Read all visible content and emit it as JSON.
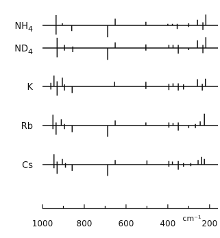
{
  "chart_data": {
    "type": "stick-spectrum",
    "xlim": [
      1000,
      160
    ],
    "x_ticks": [
      1000,
      800,
      600,
      400,
      200
    ],
    "x_tick_labels": [
      "1000",
      "800",
      "600",
      "400",
      "200"
    ],
    "x_unit": "cm⁻¹",
    "series": [
      {
        "name": "NH4",
        "label_main": "NH",
        "label_sub": "4",
        "peaks": [
          {
            "x": 935,
            "up": 1.0,
            "down": 0.9
          },
          {
            "x": 905,
            "up": 0.2,
            "down": 0.0
          },
          {
            "x": 860,
            "up": 0.0,
            "down": 0.55
          },
          {
            "x": 688,
            "up": 0.0,
            "down": 1.15
          },
          {
            "x": 652,
            "up": 0.65,
            "down": 0.0
          },
          {
            "x": 505,
            "up": 0.35,
            "down": 0.0
          },
          {
            "x": 400,
            "up": 0.15,
            "down": 0.0
          },
          {
            "x": 378,
            "up": 0.15,
            "down": 0.0
          },
          {
            "x": 355,
            "up": 0.15,
            "down": 0.35
          },
          {
            "x": 300,
            "up": 0.2,
            "down": 0.15
          },
          {
            "x": 258,
            "up": 0.55,
            "down": 0.0
          },
          {
            "x": 232,
            "up": 0.3,
            "down": 0.45
          },
          {
            "x": 218,
            "up": 1.05,
            "down": 0.0
          }
        ]
      },
      {
        "name": "ND4",
        "label_main": "ND",
        "label_sub": "4",
        "peaks": [
          {
            "x": 930,
            "up": 1.0,
            "down": 0.9
          },
          {
            "x": 895,
            "up": 0.3,
            "down": 0.25
          },
          {
            "x": 855,
            "up": 0.15,
            "down": 0.4
          },
          {
            "x": 688,
            "up": 0.0,
            "down": 1.15
          },
          {
            "x": 652,
            "up": 0.55,
            "down": 0.0
          },
          {
            "x": 505,
            "up": 0.35,
            "down": 0.25
          },
          {
            "x": 395,
            "up": 0.3,
            "down": 0.0
          },
          {
            "x": 375,
            "up": 0.3,
            "down": 0.0
          },
          {
            "x": 350,
            "up": 0.3,
            "down": 0.55
          },
          {
            "x": 300,
            "up": 0.0,
            "down": 0.2
          },
          {
            "x": 258,
            "up": 0.75,
            "down": 0.0
          },
          {
            "x": 232,
            "up": 0.3,
            "down": 0.5
          },
          {
            "x": 218,
            "up": 1.05,
            "down": 0.0
          }
        ]
      },
      {
        "name": "K",
        "label_main": "K",
        "label_sub": "",
        "peaks": [
          {
            "x": 960,
            "up": 0.35,
            "down": 0.3
          },
          {
            "x": 945,
            "up": 1.05,
            "down": 0.0
          },
          {
            "x": 930,
            "up": 0.5,
            "down": 0.9
          },
          {
            "x": 905,
            "up": 0.85,
            "down": 0.0
          },
          {
            "x": 895,
            "up": 0.2,
            "down": 0.4
          },
          {
            "x": 858,
            "up": 0.0,
            "down": 0.65
          },
          {
            "x": 655,
            "up": 0.45,
            "down": 0.0
          },
          {
            "x": 505,
            "up": 0.45,
            "down": 0.25
          },
          {
            "x": 395,
            "up": 0.25,
            "down": 0.35
          },
          {
            "x": 375,
            "up": 0.3,
            "down": 0.0
          },
          {
            "x": 350,
            "up": 0.3,
            "down": 0.4
          },
          {
            "x": 325,
            "up": 0.2,
            "down": 0.3
          },
          {
            "x": 258,
            "up": 0.7,
            "down": 0.0
          },
          {
            "x": 235,
            "up": 0.25,
            "down": 0.4
          },
          {
            "x": 220,
            "up": 0.75,
            "down": 0.0
          }
        ]
      },
      {
        "name": "Rb",
        "label_main": "Rb",
        "label_sub": "",
        "peaks": [
          {
            "x": 950,
            "up": 1.05,
            "down": 0.35
          },
          {
            "x": 935,
            "up": 0.3,
            "down": 0.9
          },
          {
            "x": 910,
            "up": 0.6,
            "down": 0.0
          },
          {
            "x": 895,
            "up": 0.15,
            "down": 0.35
          },
          {
            "x": 858,
            "up": 0.0,
            "down": 0.65
          },
          {
            "x": 688,
            "up": 0.0,
            "down": 1.1
          },
          {
            "x": 652,
            "up": 0.5,
            "down": 0.0
          },
          {
            "x": 505,
            "up": 0.3,
            "down": 0.0
          },
          {
            "x": 395,
            "up": 0.3,
            "down": 0.2
          },
          {
            "x": 375,
            "up": 0.25,
            "down": 0.0
          },
          {
            "x": 350,
            "up": 0.3,
            "down": 0.5
          },
          {
            "x": 300,
            "up": 0.0,
            "down": 0.25
          },
          {
            "x": 268,
            "up": 0.15,
            "down": 0.25
          },
          {
            "x": 245,
            "up": 0.4,
            "down": 0.0
          },
          {
            "x": 225,
            "up": 1.15,
            "down": 0.0
          }
        ]
      },
      {
        "name": "Cs",
        "label_main": "Cs",
        "label_sub": "",
        "peaks": [
          {
            "x": 945,
            "up": 1.0,
            "down": 0.35
          },
          {
            "x": 930,
            "up": 0.3,
            "down": 0.9
          },
          {
            "x": 905,
            "up": 0.55,
            "down": 0.0
          },
          {
            "x": 890,
            "up": 0.15,
            "down": 0.3
          },
          {
            "x": 858,
            "up": 0.0,
            "down": 0.6
          },
          {
            "x": 688,
            "up": 0.0,
            "down": 1.1
          },
          {
            "x": 652,
            "up": 0.45,
            "down": 0.0
          },
          {
            "x": 500,
            "up": 0.4,
            "down": 0.0
          },
          {
            "x": 395,
            "up": 0.35,
            "down": 0.2
          },
          {
            "x": 378,
            "up": 0.3,
            "down": 0.0
          },
          {
            "x": 350,
            "up": 0.35,
            "down": 0.5
          },
          {
            "x": 325,
            "up": 0.15,
            "down": 0.2
          },
          {
            "x": 290,
            "up": 0.15,
            "down": 0.15
          },
          {
            "x": 255,
            "up": 0.45,
            "down": 0.0
          },
          {
            "x": 238,
            "up": 0.75,
            "down": 0.0
          },
          {
            "x": 225,
            "up": 0.55,
            "down": 0.0
          }
        ]
      }
    ]
  }
}
